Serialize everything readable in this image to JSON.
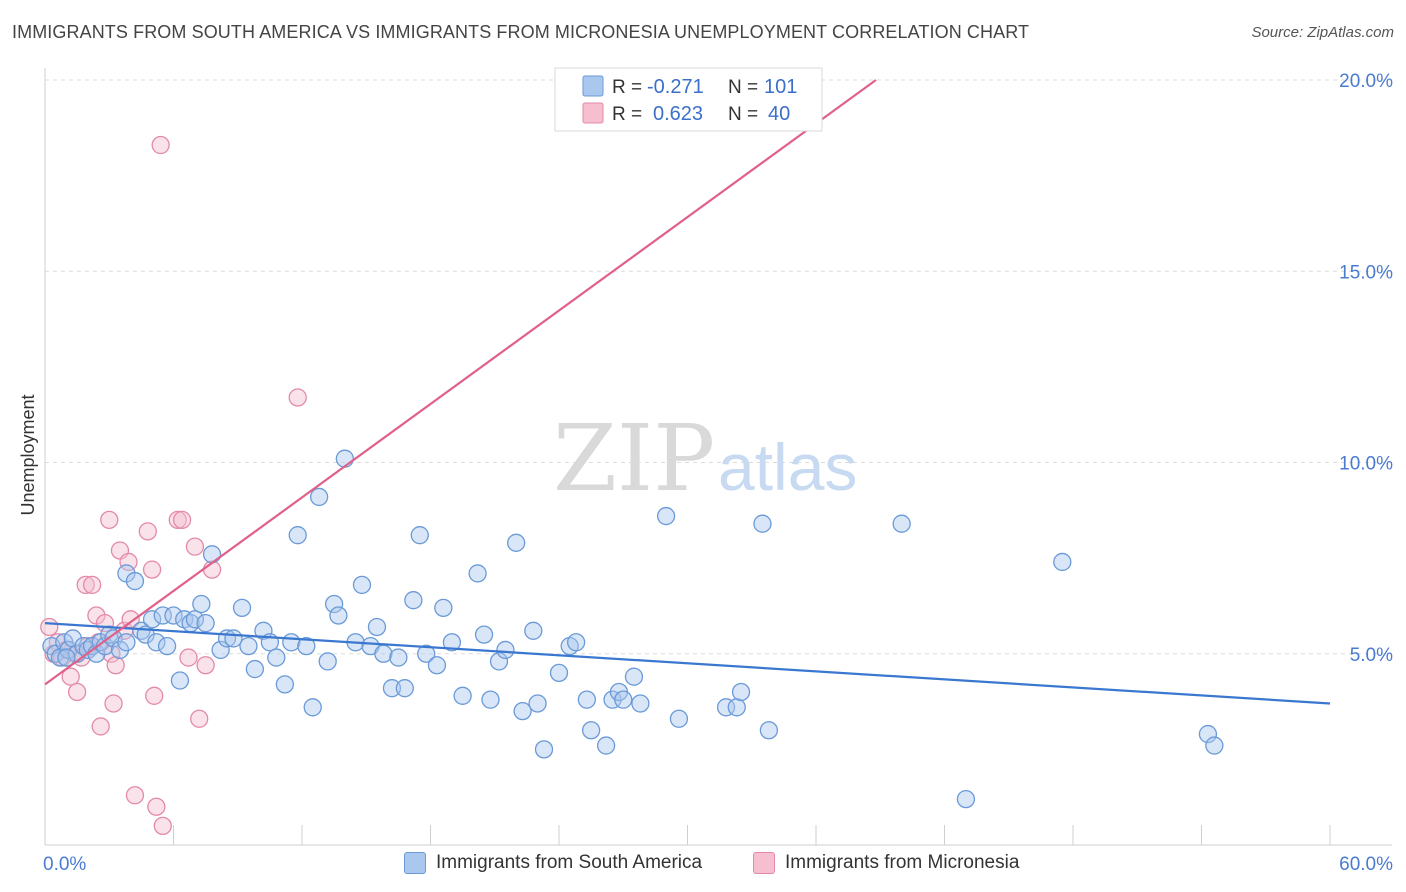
{
  "header": {
    "title": "IMMIGRANTS FROM SOUTH AMERICA VS IMMIGRANTS FROM MICRONESIA UNEMPLOYMENT CORRELATION CHART",
    "source": "Source: ZipAtlas.com"
  },
  "watermark": {
    "zip": "ZIP",
    "atlas": "atlas"
  },
  "legend_box": {
    "rows": [
      {
        "r_label": "R =",
        "r_value": "-0.271",
        "n_label": "N =",
        "n_value": "101"
      },
      {
        "r_label": "R =",
        "r_value": "0.623",
        "n_label": "N =",
        "n_value": "40"
      }
    ]
  },
  "bottom_legend": {
    "series1": "Immigrants from South America",
    "series2": "Immigrants from Micronesia"
  },
  "colors": {
    "blue_fill": "#aac8ee",
    "blue_stroke": "#6a9ad8",
    "blue_line": "#3a78d0",
    "pink_fill": "#f5bfd0",
    "pink_stroke": "#e48aa8",
    "pink_line": "#e0608a",
    "tick_text": "#4a7bd0"
  },
  "chart_data": {
    "type": "scatter",
    "title": "IMMIGRANTS FROM SOUTH AMERICA VS IMMIGRANTS FROM MICRONESIA UNEMPLOYMENT CORRELATION CHART",
    "xlabel": "",
    "ylabel": "Unemployment",
    "xlim": [
      0,
      60
    ],
    "ylim": [
      0,
      20
    ],
    "x_tick_labels": [
      "0.0%",
      "60.0%"
    ],
    "y_tick_labels": [
      "5.0%",
      "10.0%",
      "15.0%",
      "20.0%"
    ],
    "y_ticks": [
      5,
      10,
      15,
      20
    ],
    "grid": true,
    "legend_position": "top-center",
    "series": [
      {
        "name": "Immigrants from South America",
        "r": -0.271,
        "n": 101,
        "trend": {
          "x": [
            0,
            60
          ],
          "y": [
            5.8,
            3.7
          ]
        },
        "points": [
          [
            0.3,
            5.2
          ],
          [
            0.5,
            5.0
          ],
          [
            0.7,
            4.9
          ],
          [
            0.9,
            5.3
          ],
          [
            1.1,
            5.1
          ],
          [
            1.3,
            5.4
          ],
          [
            1.5,
            5.0
          ],
          [
            1.8,
            5.2
          ],
          [
            2.0,
            5.1
          ],
          [
            2.2,
            5.2
          ],
          [
            2.4,
            5.0
          ],
          [
            2.6,
            5.3
          ],
          [
            2.8,
            5.2
          ],
          [
            3.0,
            5.5
          ],
          [
            3.2,
            5.4
          ],
          [
            3.5,
            5.1
          ],
          [
            3.8,
            5.3
          ],
          [
            3.8,
            7.1
          ],
          [
            4.2,
            6.9
          ],
          [
            4.5,
            5.6
          ],
          [
            4.7,
            5.5
          ],
          [
            5.0,
            5.9
          ],
          [
            5.2,
            5.3
          ],
          [
            5.5,
            6.0
          ],
          [
            5.7,
            5.2
          ],
          [
            6.0,
            6.0
          ],
          [
            6.3,
            4.3
          ],
          [
            6.5,
            5.9
          ],
          [
            6.8,
            5.8
          ],
          [
            7.0,
            5.9
          ],
          [
            7.3,
            6.3
          ],
          [
            7.5,
            5.8
          ],
          [
            7.8,
            7.6
          ],
          [
            8.2,
            5.1
          ],
          [
            8.5,
            5.4
          ],
          [
            8.8,
            5.4
          ],
          [
            9.2,
            6.2
          ],
          [
            9.5,
            5.2
          ],
          [
            9.8,
            4.6
          ],
          [
            10.2,
            5.6
          ],
          [
            10.5,
            5.3
          ],
          [
            10.8,
            4.9
          ],
          [
            11.2,
            4.2
          ],
          [
            11.5,
            5.3
          ],
          [
            11.8,
            8.1
          ],
          [
            12.2,
            5.2
          ],
          [
            12.5,
            3.6
          ],
          [
            12.8,
            9.1
          ],
          [
            13.2,
            4.8
          ],
          [
            13.5,
            6.3
          ],
          [
            13.7,
            6.0
          ],
          [
            14.0,
            10.1
          ],
          [
            14.5,
            5.3
          ],
          [
            14.8,
            6.8
          ],
          [
            15.2,
            5.2
          ],
          [
            15.5,
            5.7
          ],
          [
            15.8,
            5.0
          ],
          [
            16.2,
            4.1
          ],
          [
            16.5,
            4.9
          ],
          [
            16.8,
            4.1
          ],
          [
            17.2,
            6.4
          ],
          [
            17.5,
            8.1
          ],
          [
            17.8,
            5.0
          ],
          [
            18.3,
            4.7
          ],
          [
            18.6,
            6.2
          ],
          [
            19.0,
            5.3
          ],
          [
            19.5,
            3.9
          ],
          [
            20.2,
            7.1
          ],
          [
            20.5,
            5.5
          ],
          [
            20.8,
            3.8
          ],
          [
            21.2,
            4.8
          ],
          [
            21.5,
            5.1
          ],
          [
            22.0,
            7.9
          ],
          [
            22.3,
            3.5
          ],
          [
            22.8,
            5.6
          ],
          [
            23.0,
            3.7
          ],
          [
            23.3,
            2.5
          ],
          [
            24.0,
            4.5
          ],
          [
            24.5,
            5.2
          ],
          [
            24.8,
            5.3
          ],
          [
            25.3,
            3.8
          ],
          [
            25.5,
            3.0
          ],
          [
            26.2,
            2.6
          ],
          [
            26.5,
            3.8
          ],
          [
            26.8,
            4.0
          ],
          [
            27.0,
            3.8
          ],
          [
            27.5,
            4.4
          ],
          [
            27.8,
            3.7
          ],
          [
            29.0,
            8.6
          ],
          [
            29.6,
            3.3
          ],
          [
            31.8,
            3.6
          ],
          [
            32.3,
            3.6
          ],
          [
            32.5,
            4.0
          ],
          [
            33.5,
            8.4
          ],
          [
            33.8,
            3.0
          ],
          [
            40.0,
            8.4
          ],
          [
            43.0,
            1.2
          ],
          [
            47.5,
            7.4
          ],
          [
            54.3,
            2.9
          ],
          [
            54.6,
            2.6
          ],
          [
            1.0,
            4.9
          ]
        ]
      },
      {
        "name": "Immigrants from Micronesia",
        "r": 0.623,
        "n": 40,
        "trend": {
          "x": [
            0,
            38.8
          ],
          "y": [
            4.2,
            20.0
          ]
        },
        "points": [
          [
            0.2,
            5.7
          ],
          [
            0.4,
            5.0
          ],
          [
            0.6,
            5.3
          ],
          [
            0.8,
            4.9
          ],
          [
            1.0,
            5.1
          ],
          [
            1.2,
            4.4
          ],
          [
            1.4,
            5.0
          ],
          [
            1.5,
            4.0
          ],
          [
            1.7,
            4.9
          ],
          [
            1.9,
            6.8
          ],
          [
            2.0,
            5.2
          ],
          [
            2.2,
            6.8
          ],
          [
            2.4,
            6.0
          ],
          [
            2.5,
            5.3
          ],
          [
            2.6,
            3.1
          ],
          [
            2.8,
            5.8
          ],
          [
            3.0,
            8.5
          ],
          [
            3.1,
            5.0
          ],
          [
            3.2,
            3.7
          ],
          [
            3.3,
            4.7
          ],
          [
            3.5,
            7.7
          ],
          [
            3.7,
            5.6
          ],
          [
            3.9,
            7.4
          ],
          [
            4.0,
            5.9
          ],
          [
            4.2,
            1.3
          ],
          [
            4.8,
            8.2
          ],
          [
            5.0,
            7.2
          ],
          [
            5.1,
            3.9
          ],
          [
            5.2,
            1.0
          ],
          [
            5.4,
            18.3
          ],
          [
            5.5,
            0.5
          ],
          [
            6.2,
            8.5
          ],
          [
            6.4,
            8.5
          ],
          [
            6.7,
            4.9
          ],
          [
            7.0,
            7.8
          ],
          [
            7.2,
            3.3
          ],
          [
            7.5,
            4.7
          ],
          [
            7.8,
            7.2
          ],
          [
            11.8,
            11.7
          ],
          [
            33.0,
            19.3
          ]
        ]
      }
    ]
  }
}
